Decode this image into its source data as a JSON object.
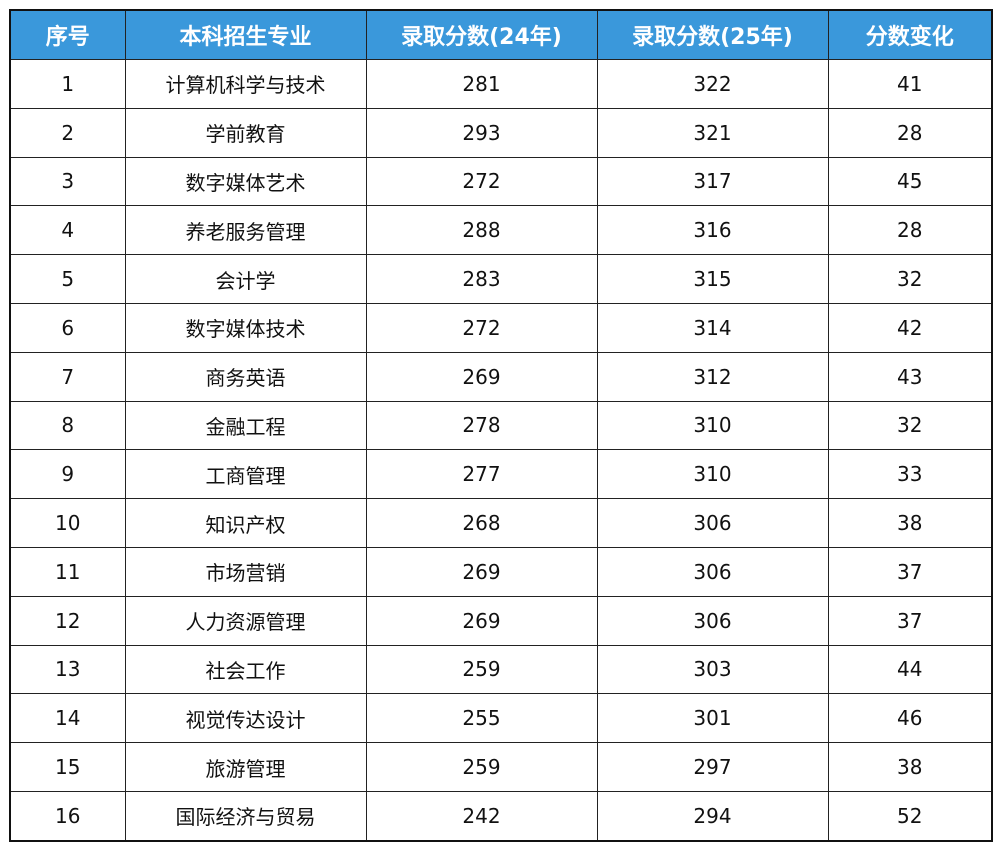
{
  "header_color": "#3a98db",
  "headers": [
    "序号",
    "本科招生专业",
    "录取分数(24年)",
    "录取分数(25年)",
    "分数变化"
  ],
  "rows": [
    [
      "1",
      "计算机科学与技术",
      "281",
      "322",
      "41"
    ],
    [
      "2",
      "学前教育",
      "293",
      "321",
      "28"
    ],
    [
      "3",
      "数字媒体艺术",
      "272",
      "317",
      "45"
    ],
    [
      "4",
      "养老服务管理",
      "288",
      "316",
      "28"
    ],
    [
      "5",
      "会计学",
      "283",
      "315",
      "32"
    ],
    [
      "6",
      "数字媒体技术",
      "272",
      "314",
      "42"
    ],
    [
      "7",
      "商务英语",
      "269",
      "312",
      "43"
    ],
    [
      "8",
      "金融工程",
      "278",
      "310",
      "32"
    ],
    [
      "9",
      "工商管理",
      "277",
      "310",
      "33"
    ],
    [
      "10",
      "知识产权",
      "268",
      "306",
      "38"
    ],
    [
      "11",
      "市场营销",
      "269",
      "306",
      "37"
    ],
    [
      "12",
      "人力资源管理",
      "269",
      "306",
      "37"
    ],
    [
      "13",
      "社会工作",
      "259",
      "303",
      "44"
    ],
    [
      "14",
      "视觉传达设计",
      "255",
      "301",
      "46"
    ],
    [
      "15",
      "旅游管理",
      "259",
      "297",
      "38"
    ],
    [
      "16",
      "国际经济与贸易",
      "242",
      "294",
      "52"
    ]
  ]
}
